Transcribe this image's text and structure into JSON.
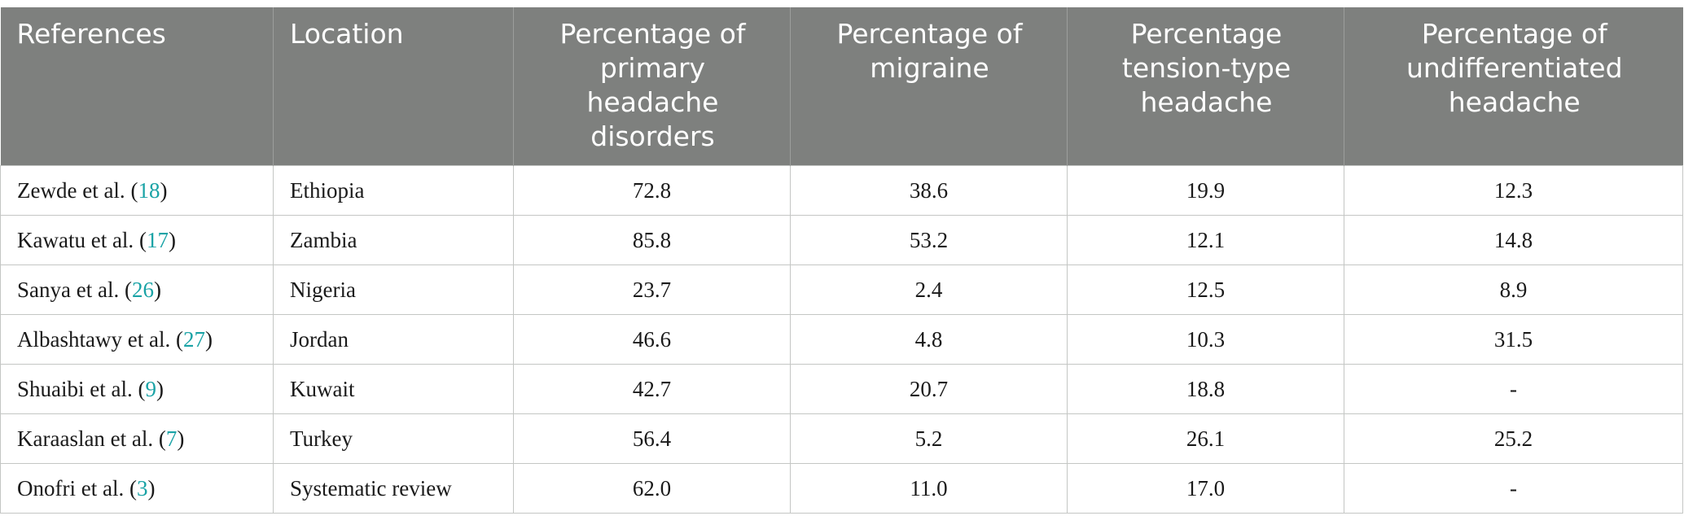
{
  "table": {
    "headers": [
      "References",
      "Location",
      "Percentage of primary headache disorders",
      "Percentage of migraine",
      "Percentage tension-type headache",
      "Percentage of undifferentiated headache"
    ],
    "rows": [
      {
        "ref_author": "Zewde et al.",
        "ref_num": "18",
        "location": "Ethiopia",
        "primary": "72.8",
        "migraine": "38.6",
        "tension": "19.9",
        "undiff": "12.3"
      },
      {
        "ref_author": "Kawatu et al.",
        "ref_num": "17",
        "location": "Zambia",
        "primary": "85.8",
        "migraine": "53.2",
        "tension": "12.1",
        "undiff": "14.8"
      },
      {
        "ref_author": "Sanya et al.",
        "ref_num": "26",
        "location": "Nigeria",
        "primary": "23.7",
        "migraine": "2.4",
        "tension": "12.5",
        "undiff": "8.9"
      },
      {
        "ref_author": "Albashtawy et al.",
        "ref_num": "27",
        "location": "Jordan",
        "primary": "46.6",
        "migraine": "4.8",
        "tension": "10.3",
        "undiff": "31.5"
      },
      {
        "ref_author": "Shuaibi et al.",
        "ref_num": "9",
        "location": "Kuwait",
        "primary": "42.7",
        "migraine": "20.7",
        "tension": "18.8",
        "undiff": "-"
      },
      {
        "ref_author": "Karaaslan et al.",
        "ref_num": "7",
        "location": "Turkey",
        "primary": "56.4",
        "migraine": "5.2",
        "tension": "26.1",
        "undiff": "25.2"
      },
      {
        "ref_author": "Onofri et al.",
        "ref_num": "3",
        "location": "Systematic review",
        "primary": "62.0",
        "migraine": "11.0",
        "tension": "17.0",
        "undiff": "-"
      }
    ]
  },
  "colors": {
    "header_bg": "#7e807e",
    "header_text": "#ffffff",
    "link": "#1aa3a6",
    "grid": "#c4c6c4"
  }
}
